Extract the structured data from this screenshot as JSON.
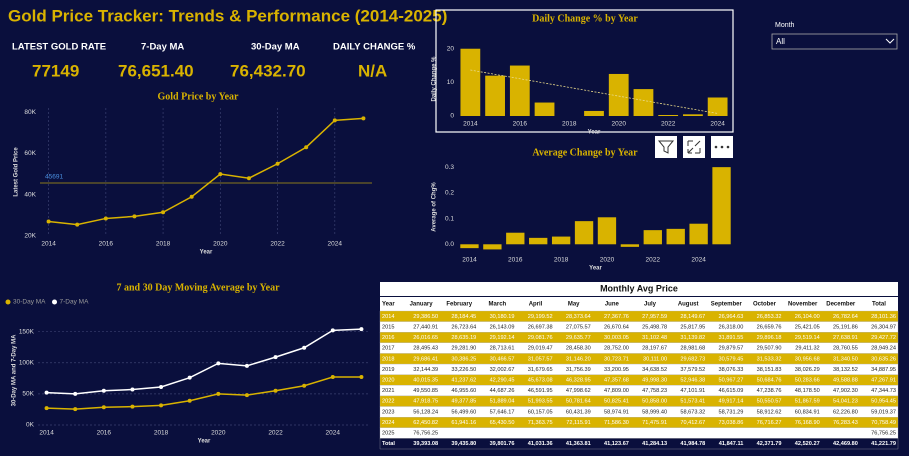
{
  "title": "Gold Price Tracker: Trends & Performance (2014-2025)",
  "kpis": [
    {
      "label": "LATEST GOLD RATE",
      "value": "77149"
    },
    {
      "label": "7-Day MA",
      "value": "76,651.40"
    },
    {
      "label": "30-Day MA",
      "value": "76,432.70"
    },
    {
      "label": "DAILY CHANGE %",
      "value": "N/A"
    }
  ],
  "slicer": {
    "label": "Month",
    "value": "All"
  },
  "chart_data": [
    {
      "type": "line",
      "title": "Gold Price by Year",
      "xlabel": "Year",
      "ylabel": "Latest Gold Price",
      "x": [
        2014,
        2015,
        2016,
        2017,
        2018,
        2019,
        2020,
        2021,
        2022,
        2023,
        2024,
        2025
      ],
      "values": [
        27000,
        25500,
        28500,
        29500,
        31500,
        39000,
        50000,
        48000,
        55000,
        63000,
        76000,
        77000
      ],
      "color": "#d9b300",
      "markers": true,
      "reference_line": 45691,
      "reference_color": "#8a7a1a",
      "xlim": [
        2013.7,
        2025.3
      ],
      "xticks": [
        2014,
        2016,
        2018,
        2020,
        2022,
        2024
      ],
      "ylim": [
        20000,
        82000
      ],
      "yticks": [
        {
          "value": 20000,
          "label": "20K"
        },
        {
          "value": 40000,
          "label": "40K"
        },
        {
          "value": 60000,
          "label": "60K"
        },
        {
          "value": 80000,
          "label": "80K"
        }
      ],
      "xgrid": true
    },
    {
      "type": "bar",
      "title": "Daily Change % by Year",
      "xlabel": "Year",
      "ylabel": "Daily Change %",
      "x": [
        2014,
        2015,
        2016,
        2017,
        2018,
        2019,
        2020,
        2021,
        2022,
        2023,
        2024
      ],
      "values": [
        20,
        12,
        15,
        4,
        0,
        1.5,
        12.5,
        8,
        0.3,
        0.5,
        5.5
      ],
      "color": "#d9b300",
      "trendline": true,
      "xlim": [
        2013.5,
        2024.5
      ],
      "xticks": [
        2014,
        2016,
        2018,
        2020,
        2022,
        2024
      ],
      "ylim": [
        0,
        22
      ],
      "yticks": [
        0,
        10,
        20
      ]
    },
    {
      "type": "bar",
      "title": "Average Change by Year",
      "xlabel": "Year",
      "ylabel": "Average of Chg%",
      "x": [
        2014,
        2015,
        2016,
        2017,
        2018,
        2019,
        2020,
        2021,
        2022,
        2023,
        2024,
        2025
      ],
      "values": [
        -0.015,
        -0.02,
        0.045,
        0.025,
        0.03,
        0.09,
        0.105,
        -0.01,
        0.055,
        0.06,
        0.08,
        0.3
      ],
      "color": "#d9b300",
      "xlim": [
        2013.5,
        2025.5
      ],
      "xticks": [
        2014,
        2016,
        2018,
        2020,
        2022,
        2024
      ],
      "ylim": [
        -0.03,
        0.32
      ],
      "yticks": [
        {
          "value": 0,
          "label": "0.0"
        },
        {
          "value": 0.1,
          "label": "0.1"
        },
        {
          "value": 0.2,
          "label": "0.2"
        },
        {
          "value": 0.3,
          "label": "0.3"
        }
      ]
    },
    {
      "type": "line",
      "title": "7 and 30 Day Moving Average by Year",
      "xlabel": "Year",
      "ylabel": "30-Day MA and 7-Day MA",
      "x": [
        2014,
        2015,
        2016,
        2017,
        2018,
        2019,
        2020,
        2021,
        2022,
        2023,
        2024,
        2025
      ],
      "series": [
        {
          "name": "30-Day MA",
          "color": "#d9b300",
          "values": [
            27000,
            25500,
            28500,
            29500,
            31500,
            39000,
            50000,
            48000,
            55000,
            63000,
            77000,
            77000
          ]
        },
        {
          "name": "7-Day MA",
          "color": "#ffffff",
          "values": [
            52000,
            50000,
            55000,
            57000,
            61000,
            76000,
            99000,
            95000,
            109000,
            124000,
            152000,
            154000
          ]
        }
      ],
      "markers": true,
      "legend": "top-left",
      "xlim": [
        2013.7,
        2025.3
      ],
      "xticks": [
        2014,
        2016,
        2018,
        2020,
        2022,
        2024
      ],
      "ylim": [
        0,
        175000
      ],
      "yticks": [
        {
          "value": 0,
          "label": "0K"
        },
        {
          "value": 50000,
          "label": "50K"
        },
        {
          "value": 100000,
          "label": "100K"
        },
        {
          "value": 150000,
          "label": "150K"
        }
      ],
      "ygrid": true
    }
  ],
  "table": {
    "title": "Monthly Avg Price",
    "columns": [
      "Year",
      "January",
      "February",
      "March",
      "April",
      "May",
      "June",
      "July",
      "August",
      "September",
      "October",
      "November",
      "December",
      "Total"
    ],
    "rows": [
      [
        "2014",
        "29,386.50",
        "28,184.45",
        "30,180.19",
        "29,199.52",
        "28,373.64",
        "27,367.76",
        "27,957.59",
        "28,149.67",
        "26,964.63",
        "26,853.32",
        "26,104.00",
        "26,782.64",
        "28,101.36"
      ],
      [
        "2015",
        "27,440.91",
        "26,723.64",
        "26,143.09",
        "26,697.38",
        "27,075.57",
        "26,670.64",
        "25,498.78",
        "25,817.95",
        "26,318.00",
        "26,659.76",
        "25,421.05",
        "25,191.86",
        "26,304.97"
      ],
      [
        "2016",
        "26,016.65",
        "28,635.19",
        "29,192.14",
        "29,081.76",
        "29,635.77",
        "30,003.05",
        "31,102.48",
        "31,139.82",
        "31,891.55",
        "29,896.18",
        "29,519.14",
        "27,638.91",
        "29,427.72"
      ],
      [
        "2017",
        "28,495.43",
        "29,281.90",
        "28,713.61",
        "29,019.47",
        "28,458.30",
        "28,752.00",
        "28,197.67",
        "28,981.68",
        "29,879.57",
        "29,507.90",
        "29,411.32",
        "28,760.55",
        "28,949.24"
      ],
      [
        "2018",
        "29,686.41",
        "30,386.25",
        "30,466.57",
        "31,057.57",
        "31,146.20",
        "30,723.71",
        "30,111.00",
        "29,682.73",
        "30,579.45",
        "31,533.32",
        "30,956.68",
        "31,340.50",
        "30,635.26"
      ],
      [
        "2019",
        "32,144.39",
        "33,226.50",
        "32,002.67",
        "31,679.65",
        "31,756.39",
        "33,200.95",
        "34,638.52",
        "37,579.52",
        "38,076.33",
        "38,151.83",
        "38,026.29",
        "38,132.52",
        "34,887.95"
      ],
      [
        "2020",
        "40,015.35",
        "41,237.62",
        "42,290.45",
        "45,673.08",
        "46,328.95",
        "47,357.68",
        "49,998.30",
        "52,946.38",
        "50,967.27",
        "50,684.76",
        "50,283.66",
        "49,588.88",
        "47,267.91"
      ],
      [
        "2021",
        "49,550.85",
        "46,955.60",
        "44,687.26",
        "46,591.95",
        "47,998.62",
        "47,809.00",
        "47,758.23",
        "47,101.91",
        "46,615.09",
        "47,238.76",
        "48,178.50",
        "47,902.30",
        "47,344.73"
      ],
      [
        "2022",
        "47,918.75",
        "49,377.85",
        "51,889.04",
        "51,993.55",
        "50,781.64",
        "50,825.41",
        "50,858.00",
        "51,573.41",
        "49,917.14",
        "50,550.57",
        "51,867.59",
        "54,041.23",
        "50,954.45"
      ],
      [
        "2023",
        "56,128.24",
        "56,499.60",
        "57,646.17",
        "60,157.05",
        "60,431.39",
        "58,974.91",
        "58,999.40",
        "58,673.32",
        "58,731.29",
        "58,912.62",
        "60,834.91",
        "62,226.80",
        "59,019.37"
      ],
      [
        "2024",
        "62,450.82",
        "61,941.16",
        "65,430.50",
        "71,363.75",
        "72,115.91",
        "71,586.30",
        "71,475.91",
        "70,412.67",
        "73,038.86",
        "76,716.27",
        "76,168.90",
        "76,283.43",
        "70,758.49"
      ],
      [
        "2025",
        "76,756.25",
        null,
        null,
        null,
        null,
        null,
        null,
        null,
        null,
        null,
        null,
        null,
        "76,756.25"
      ],
      [
        "Total",
        "39,393.08",
        "39,435.80",
        "39,801.76",
        "41,031.36",
        "41,363.81",
        "41,123.67",
        "41,284.13",
        "41,984.78",
        "41,847.11",
        "42,371.79",
        "42,520.27",
        "42,469.80",
        "41,221.79"
      ]
    ]
  }
}
